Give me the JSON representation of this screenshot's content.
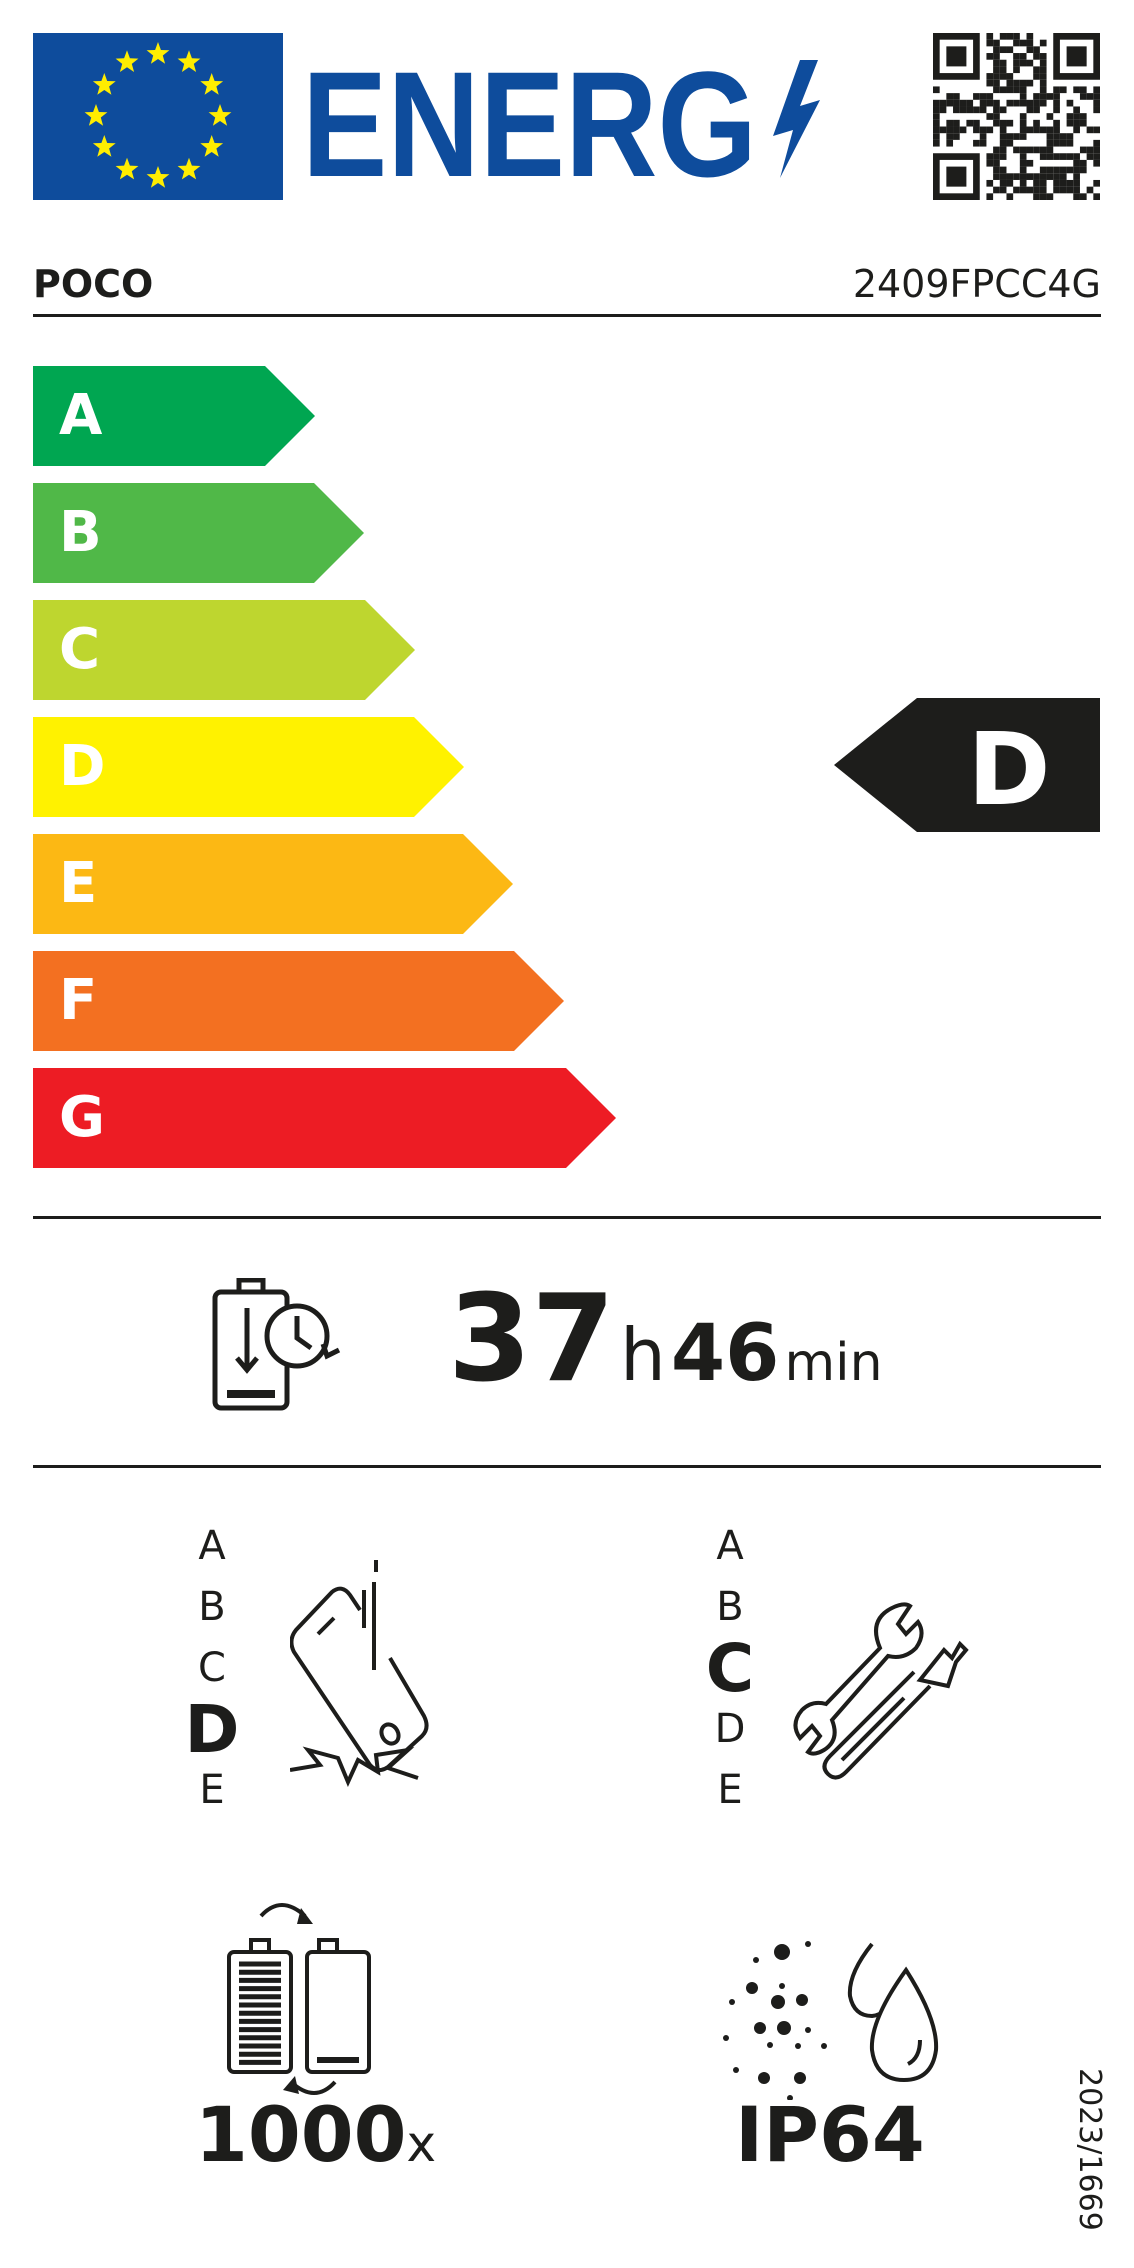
{
  "header": {
    "logo_text": "ENERG",
    "eu_flag_color": "#0e4c9c",
    "star_color": "#ffed00",
    "brand_color": "#0e4c9c",
    "qr_icon": "qr-code-icon"
  },
  "supplier": "POCO",
  "model": "2409FPCC4G",
  "energy_scale": {
    "classes": [
      {
        "label": "A",
        "color": "#00a651"
      },
      {
        "label": "B",
        "color": "#50b848"
      },
      {
        "label": "C",
        "color": "#bed62f"
      },
      {
        "label": "D",
        "color": "#fff200"
      },
      {
        "label": "E",
        "color": "#fcb814"
      },
      {
        "label": "F",
        "color": "#f37021"
      },
      {
        "label": "G",
        "color": "#ed1c24"
      }
    ],
    "rating": "D"
  },
  "battery_endurance": {
    "hours": "37",
    "hours_unit": "h",
    "minutes": "46",
    "minutes_unit": "min",
    "icon": "battery-clock-icon"
  },
  "drop_resistance": {
    "classes": [
      "A",
      "B",
      "C",
      "D",
      "E"
    ],
    "rating": "D",
    "icon": "phone-drop-icon"
  },
  "repairability": {
    "classes": [
      "A",
      "B",
      "C",
      "D",
      "E"
    ],
    "rating": "C",
    "icon": "wrench-screwdriver-icon"
  },
  "battery_cycles": {
    "value": "1000",
    "unit": "x",
    "icon": "battery-cycle-icon"
  },
  "ingress_protection": {
    "value": "IP64",
    "icon": "dust-water-icon"
  },
  "regulation": "2023/1669"
}
